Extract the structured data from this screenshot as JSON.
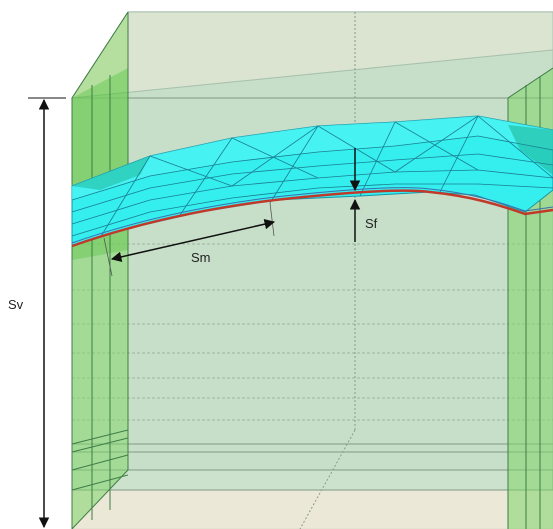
{
  "labels": {
    "sv": "Sv",
    "sm": "Sm",
    "sf": "Sf"
  },
  "colors": {
    "box_fill": "#cfe3cf",
    "box_top": "#f4ead8",
    "side_panel": "#86d86c",
    "side_panel_dark": "#5fc44a",
    "surface_fill": "#33f0f0",
    "surface_edge": "#1aa7b8",
    "interface_line": "#c0392b",
    "grid_line": "#7f9a86",
    "arrow": "#111111"
  }
}
